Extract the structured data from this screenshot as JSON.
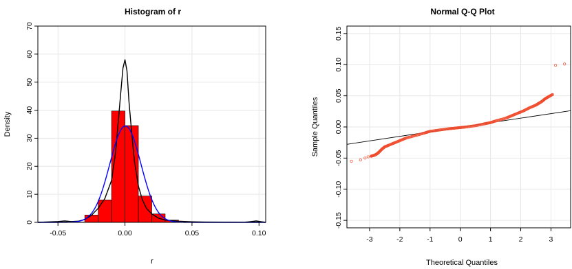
{
  "chart_data": [
    {
      "type": "histogram",
      "title": "Histogram of r",
      "xlabel": "r",
      "ylabel": "Density",
      "xlim": [
        -0.065,
        0.105
      ],
      "ylim": [
        0,
        70
      ],
      "xticks": [
        -0.05,
        0.0,
        0.05,
        0.1
      ],
      "xtick_labels": [
        "-0.05",
        "0.00",
        "0.05",
        "0.10"
      ],
      "yticks": [
        0,
        10,
        20,
        30,
        40,
        50,
        60,
        70
      ],
      "ytick_labels": [
        "0",
        "10",
        "20",
        "30",
        "40",
        "50",
        "60",
        "70"
      ],
      "grid": true,
      "bar_color": "#ff0000",
      "bin_width": 0.01,
      "bins": [
        {
          "x0": -0.05,
          "x1": -0.04,
          "density": 0.2
        },
        {
          "x0": -0.04,
          "x1": -0.03,
          "density": 0.1
        },
        {
          "x0": -0.03,
          "x1": -0.02,
          "density": 2.6
        },
        {
          "x0": -0.02,
          "x1": -0.01,
          "density": 8.0
        },
        {
          "x0": -0.01,
          "x1": 0.0,
          "density": 39.7
        },
        {
          "x0": 0.0,
          "x1": 0.01,
          "density": 34.5
        },
        {
          "x0": 0.01,
          "x1": 0.02,
          "density": 9.4
        },
        {
          "x0": 0.02,
          "x1": 0.03,
          "density": 3.0
        },
        {
          "x0": 0.03,
          "x1": 0.04,
          "density": 0.8
        },
        {
          "x0": 0.04,
          "x1": 0.05,
          "density": 0.3
        },
        {
          "x0": 0.05,
          "x1": 0.06,
          "density": 0.1
        },
        {
          "x0": 0.09,
          "x1": 0.1,
          "density": 0.2
        }
      ],
      "series": [
        {
          "kind": "kernel-density",
          "color": "#000000",
          "x": [
            -0.065,
            -0.05,
            -0.045,
            -0.04,
            -0.035,
            -0.03,
            -0.025,
            -0.02,
            -0.015,
            -0.01,
            -0.007,
            -0.005,
            -0.003,
            -0.0015,
            0.0,
            0.0015,
            0.003,
            0.005,
            0.007,
            0.01,
            0.013,
            0.016,
            0.02,
            0.025,
            0.03,
            0.035,
            0.04,
            0.05,
            0.06,
            0.09,
            0.098,
            0.105
          ],
          "y": [
            0,
            0.3,
            0.5,
            0.3,
            0.4,
            1.0,
            2.5,
            5.0,
            8.5,
            15.0,
            25.0,
            36.0,
            47.0,
            55.0,
            58.0,
            54.0,
            43.0,
            32.0,
            22.0,
            13.0,
            8.0,
            5.0,
            3.0,
            1.5,
            0.8,
            0.6,
            0.4,
            0.2,
            0.1,
            0.05,
            0.5,
            0
          ]
        },
        {
          "kind": "normal-density",
          "color": "#0000ff",
          "mean": 0.0003,
          "sd": 0.0116
        }
      ]
    },
    {
      "type": "scatter",
      "title": "Normal Q-Q Plot",
      "xlabel": "Theoretical Quantiles",
      "ylabel": "Sample Quantiles",
      "xlim": [
        -3.75,
        3.65
      ],
      "ylim": [
        -0.162,
        0.162
      ],
      "xticks": [
        -3,
        -2,
        -1,
        0,
        1,
        2,
        3
      ],
      "xtick_labels": [
        "-3",
        "-2",
        "-1",
        "0",
        "1",
        "2",
        "3"
      ],
      "yticks": [
        -0.15,
        -0.1,
        -0.05,
        0.0,
        0.05,
        0.1,
        0.15
      ],
      "ytick_labels": [
        "-0.15",
        "-0.10",
        "-0.05",
        "0.00",
        "0.05",
        "0.10",
        "0.15"
      ],
      "grid": true,
      "point_color": "#f04e30",
      "reference_line": {
        "intercept": -0.0005,
        "slope": 0.0073,
        "color": "#000000"
      },
      "points": {
        "x": [
          -3.6,
          -3.3,
          -3.15,
          -3.05,
          -2.95,
          -2.88,
          -2.82,
          -2.75,
          -2.68,
          -2.6,
          -2.5,
          -2.4,
          -2.2,
          -2.0,
          -1.8,
          -1.5,
          -1.2,
          -1.0,
          -0.7,
          -0.4,
          -0.2,
          0.0,
          0.2,
          0.5,
          0.8,
          1.0,
          1.2,
          1.5,
          1.7,
          1.9,
          2.1,
          2.3,
          2.5,
          2.6,
          2.7,
          2.8,
          2.9,
          3.05,
          3.15,
          3.45
        ],
        "y": [
          -0.055,
          -0.053,
          -0.05,
          -0.048,
          -0.047,
          -0.046,
          -0.045,
          -0.043,
          -0.04,
          -0.036,
          -0.032,
          -0.03,
          -0.026,
          -0.022,
          -0.018,
          -0.014,
          -0.01,
          -0.007,
          -0.005,
          -0.003,
          -0.002,
          -0.001,
          0.0,
          0.002,
          0.005,
          0.007,
          0.01,
          0.014,
          0.018,
          0.022,
          0.026,
          0.031,
          0.035,
          0.038,
          0.041,
          0.045,
          0.048,
          0.052,
          0.099,
          0.101
        ]
      }
    }
  ]
}
